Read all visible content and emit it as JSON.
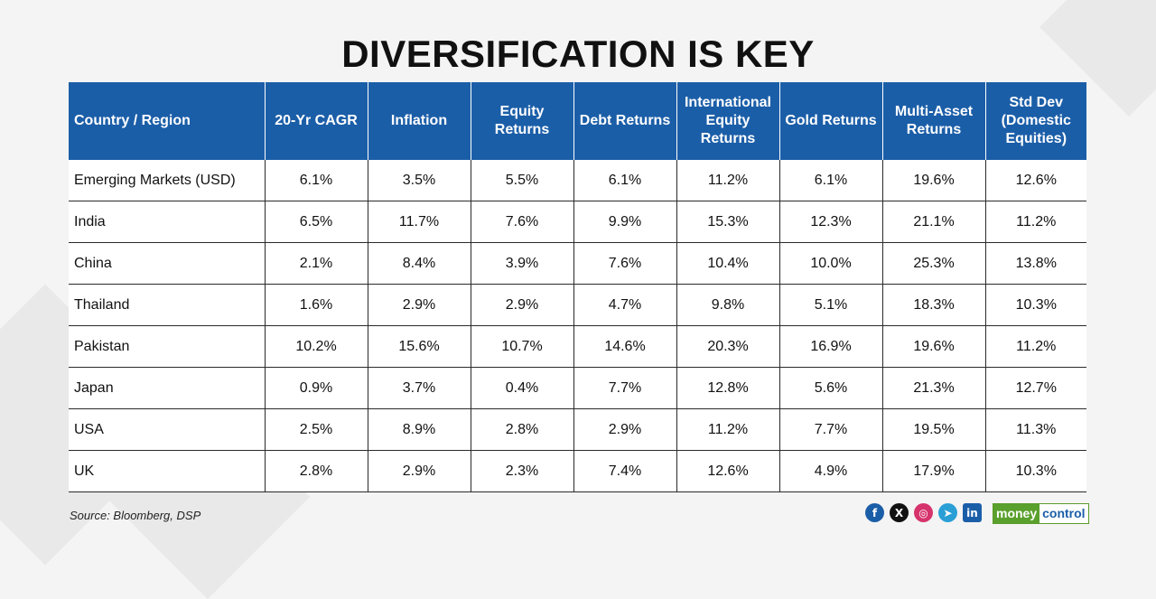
{
  "chart_data": {
    "type": "table",
    "title": "DIVERSIFICATION IS KEY",
    "columns": [
      "Country / Region",
      "20-Yr CAGR",
      "Inflation",
      "Equity Returns",
      "Debt Returns",
      "International Equity Returns",
      "Gold Returns",
      "Multi-Asset Returns",
      "Std Dev (Domestic Equities)"
    ],
    "rows": [
      [
        "Emerging Markets (USD)",
        "6.1%",
        "3.5%",
        "5.5%",
        "6.1%",
        "11.2%",
        "6.1%",
        "19.6%",
        "12.6%"
      ],
      [
        "India",
        "6.5%",
        "11.7%",
        "7.6%",
        "9.9%",
        "15.3%",
        "12.3%",
        "21.1%",
        "11.2%"
      ],
      [
        "China",
        "2.1%",
        "8.4%",
        "3.9%",
        "7.6%",
        "10.4%",
        "10.0%",
        "25.3%",
        "13.8%"
      ],
      [
        "Thailand",
        "1.6%",
        "2.9%",
        "2.9%",
        "4.7%",
        "9.8%",
        "5.1%",
        "18.3%",
        "10.3%"
      ],
      [
        "Pakistan",
        "10.2%",
        "15.6%",
        "10.7%",
        "14.6%",
        "20.3%",
        "16.9%",
        "19.6%",
        "11.2%"
      ],
      [
        "Japan",
        "0.9%",
        "3.7%",
        "0.4%",
        "7.7%",
        "12.8%",
        "5.6%",
        "21.3%",
        "12.7%"
      ],
      [
        "USA",
        "2.5%",
        "8.9%",
        "2.8%",
        "2.9%",
        "11.2%",
        "7.7%",
        "19.5%",
        "11.3%"
      ],
      [
        "UK",
        "2.8%",
        "2.9%",
        "2.3%",
        "7.4%",
        "12.6%",
        "4.9%",
        "17.9%",
        "10.3%"
      ]
    ],
    "source": "Source: Bloomberg, DSP"
  },
  "colors": {
    "header_bg": "#1b5ea8",
    "brand_green": "#5aa02c"
  },
  "footer": {
    "social_icons": [
      {
        "name": "facebook-icon",
        "glyph": "f",
        "color": "#1b5ea8"
      },
      {
        "name": "x-icon",
        "glyph": "X",
        "color": "#111111"
      },
      {
        "name": "instagram-icon",
        "glyph": "◎",
        "color": "#d6336c"
      },
      {
        "name": "telegram-icon",
        "glyph": "➤",
        "color": "#2a9fd6"
      },
      {
        "name": "linkedin-icon",
        "glyph": "in",
        "color": "#1b5ea8"
      }
    ],
    "brand_part1": "money",
    "brand_part2": "control"
  }
}
